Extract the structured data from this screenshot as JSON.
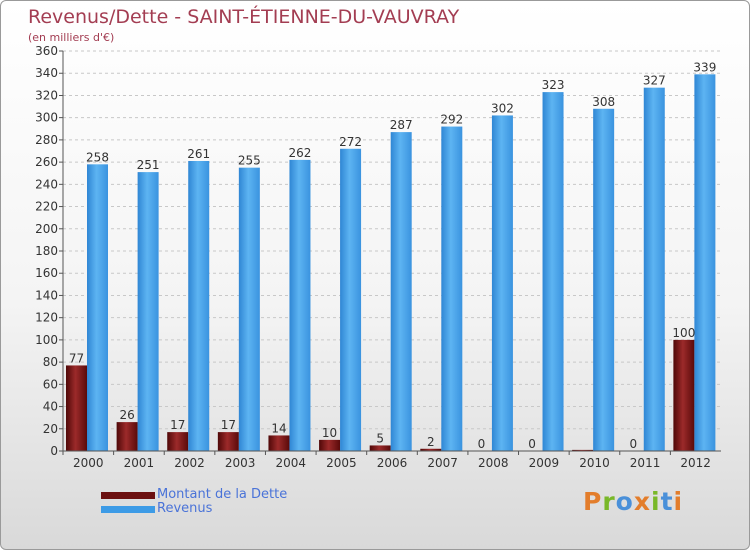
{
  "header": {
    "title": "Revenus/Dette - SAINT-ÉTIENNE-DU-VAUVRAY",
    "unit_note": "(en milliers d'€)"
  },
  "colors": {
    "title": "#a33d52",
    "debt": "#7a1414",
    "revenue": "#3d9be6",
    "legend_text": "#4a73d8"
  },
  "logo": {
    "text": "Proxiti",
    "colors": [
      "#e37d2b",
      "#79b829",
      "#4a90d9",
      "#e37d2b",
      "#79b829",
      "#4a90d9",
      "#e37d2b"
    ]
  },
  "chart_data": {
    "type": "bar",
    "title": "Revenus/Dette - SAINT-ÉTIENNE-DU-VAUVRAY",
    "ylabel": "(en milliers d'€)",
    "xlabel": "",
    "ylim": [
      0,
      360
    ],
    "yticks": [
      0,
      20,
      40,
      60,
      80,
      100,
      120,
      140,
      160,
      180,
      200,
      220,
      240,
      260,
      280,
      300,
      320,
      340,
      360
    ],
    "grid": true,
    "categories": [
      "2000",
      "2001",
      "2002",
      "2003",
      "2004",
      "2005",
      "2006",
      "2007",
      "2008",
      "2009",
      "2010",
      "2011",
      "2012"
    ],
    "series": [
      {
        "name": "Montant de la Dette",
        "color": "#7a1414",
        "values": [
          77,
          26,
          17,
          17,
          14,
          10,
          5,
          2,
          0,
          0,
          1,
          0,
          100
        ],
        "labels": [
          "77",
          "26",
          "17",
          "17",
          "14",
          "10",
          "5",
          "2",
          "0",
          "0",
          "",
          "0",
          "100"
        ]
      },
      {
        "name": "Revenus",
        "color": "#3d9be6",
        "values": [
          258,
          251,
          261,
          255,
          262,
          272,
          287,
          292,
          302,
          323,
          308,
          327,
          339
        ],
        "labels": [
          "258",
          "251",
          "261",
          "255",
          "262",
          "272",
          "287",
          "292",
          "302",
          "323",
          "308",
          "327",
          "339"
        ]
      }
    ],
    "legend_position": "bottom-left"
  }
}
